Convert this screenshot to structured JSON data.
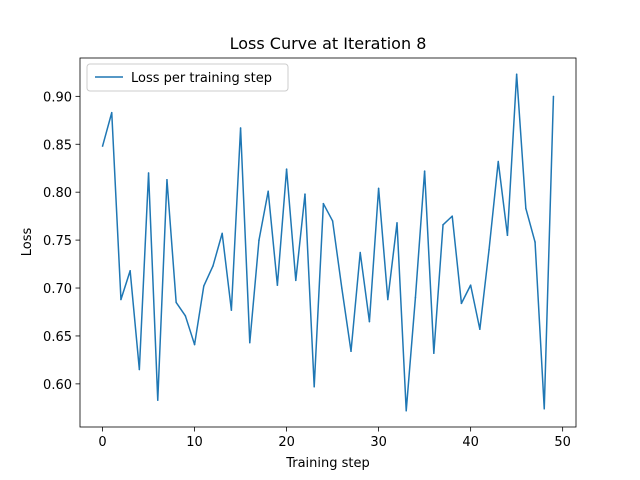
{
  "chart_data": {
    "type": "line",
    "title": "Loss Curve at Iteration 8",
    "xlabel": "Training step",
    "ylabel": "Loss",
    "xlim": [
      -2.45,
      51.45
    ],
    "ylim": [
      0.555,
      0.94
    ],
    "xticks": [
      0,
      10,
      20,
      30,
      40,
      50
    ],
    "yticks": [
      0.6,
      0.65,
      0.7,
      0.75,
      0.8,
      0.85,
      0.9
    ],
    "ytick_labels": [
      "0.60",
      "0.65",
      "0.70",
      "0.75",
      "0.80",
      "0.85",
      "0.90"
    ],
    "grid": false,
    "legend_position": "top-left",
    "series": [
      {
        "name": "Loss per training step",
        "color": "#1f77b4",
        "x": [
          0,
          1,
          2,
          3,
          4,
          5,
          6,
          7,
          8,
          9,
          10,
          11,
          12,
          13,
          14,
          15,
          16,
          17,
          18,
          19,
          20,
          21,
          22,
          23,
          24,
          25,
          26,
          27,
          28,
          29,
          30,
          31,
          32,
          33,
          34,
          35,
          36,
          37,
          38,
          39,
          40,
          41,
          42,
          43,
          44,
          45,
          46,
          47,
          48,
          49
        ],
        "y": [
          0.848,
          0.883,
          0.688,
          0.718,
          0.615,
          0.82,
          0.583,
          0.813,
          0.685,
          0.671,
          0.641,
          0.702,
          0.723,
          0.757,
          0.677,
          0.867,
          0.643,
          0.75,
          0.801,
          0.703,
          0.824,
          0.708,
          0.798,
          0.597,
          0.788,
          0.77,
          0.7,
          0.634,
          0.737,
          0.665,
          0.804,
          0.688,
          0.768,
          0.572,
          0.69,
          0.822,
          0.632,
          0.766,
          0.775,
          0.684,
          0.703,
          0.657,
          0.74,
          0.832,
          0.755,
          0.923,
          0.783,
          0.748,
          0.574,
          0.9
        ]
      }
    ]
  }
}
